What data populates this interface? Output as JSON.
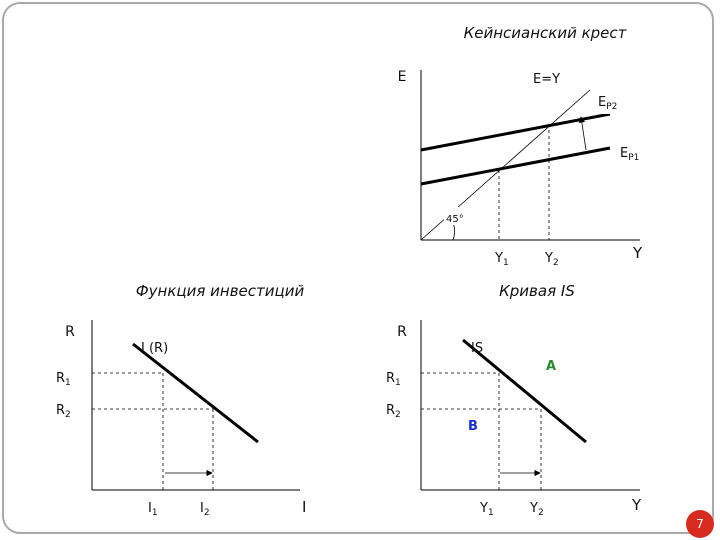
{
  "keynesian_cross": {
    "title": "Кейнсианский крест",
    "axis_e": "E",
    "axis_y": "Y",
    "line_45": "E=Y",
    "ep2": {
      "main": "E",
      "sub": "P2"
    },
    "ep1": {
      "main": "E",
      "sub": "P1"
    },
    "angle": "45°",
    "y1": {
      "main": "Y",
      "sub": "1"
    },
    "y2": {
      "main": "Y",
      "sub": "2"
    }
  },
  "investment": {
    "title": "Функция инвестиций",
    "axis_r": "R",
    "axis_i": "I",
    "curve": "I (R)",
    "r1": {
      "main": "R",
      "sub": "1"
    },
    "r2": {
      "main": "R",
      "sub": "2"
    },
    "i1": {
      "main": "I",
      "sub": "1"
    },
    "i2": {
      "main": "I",
      "sub": "2"
    }
  },
  "is_curve": {
    "title": "Кривая IS",
    "axis_r": "R",
    "axis_y": "Y",
    "curve": "IS",
    "point_a": "A",
    "point_b": "B",
    "r1": {
      "main": "R",
      "sub": "1"
    },
    "r2": {
      "main": "R",
      "sub": "2"
    },
    "y1": {
      "main": "Y",
      "sub": "1"
    },
    "y2": {
      "main": "Y",
      "sub": "2"
    }
  },
  "page_number": "7",
  "colors": {
    "point_a": "#2a8a2a",
    "point_b": "#1a2fd0",
    "badge": "#d62b1e"
  }
}
